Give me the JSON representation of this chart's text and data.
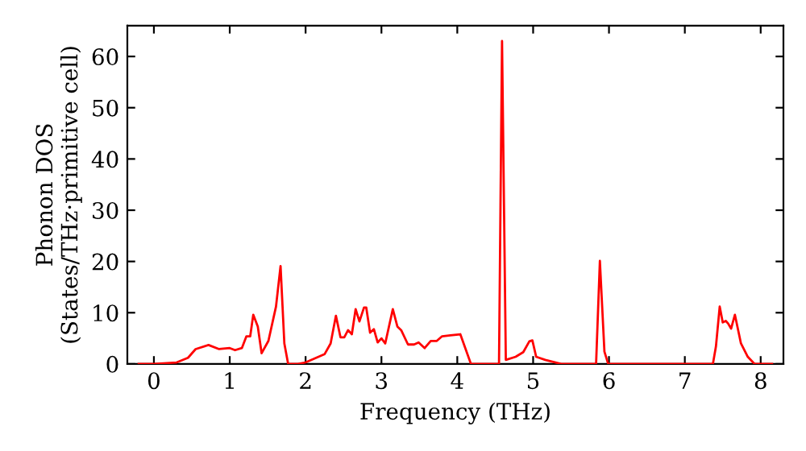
{
  "chart_data": {
    "type": "line",
    "xlabel": "Frequency (THz)",
    "ylabel": "Phonon DOS\n(States/THz·primitive cell)",
    "xlim": [
      -0.35,
      8.3
    ],
    "ylim": [
      0,
      66
    ],
    "xticks": [
      0,
      1,
      2,
      3,
      4,
      5,
      6,
      7,
      8
    ],
    "yticks": [
      0,
      10,
      20,
      30,
      40,
      50,
      60
    ],
    "grid": false,
    "marker": "none",
    "line_style": "solid",
    "series": [
      {
        "color": "#ff0000",
        "x": [
          -0.2,
          0.0,
          0.3,
          0.45,
          0.55,
          0.72,
          0.86,
          1.0,
          1.07,
          1.16,
          1.22,
          1.27,
          1.31,
          1.37,
          1.42,
          1.51,
          1.61,
          1.67,
          1.72,
          1.77,
          1.9,
          2.0,
          2.25,
          2.33,
          2.4,
          2.46,
          2.51,
          2.56,
          2.61,
          2.66,
          2.71,
          2.77,
          2.8,
          2.85,
          2.9,
          2.95,
          3.0,
          3.05,
          3.15,
          3.21,
          3.26,
          3.35,
          3.43,
          3.49,
          3.57,
          3.65,
          3.73,
          3.8,
          3.91,
          4.04,
          4.18,
          4.55,
          4.59,
          4.64,
          4.77,
          4.87,
          4.95,
          4.99,
          5.04,
          5.16,
          5.37,
          5.83,
          5.88,
          5.94,
          5.99,
          7.37,
          7.41,
          7.46,
          7.5,
          7.54,
          7.57,
          7.61,
          7.66,
          7.74,
          7.83,
          7.92,
          8.15
        ],
        "values": [
          0,
          0,
          0.3,
          1.2,
          2.9,
          3.7,
          2.9,
          3.1,
          2.7,
          3.1,
          5.4,
          5.4,
          9.6,
          7.3,
          2.1,
          4.5,
          11.2,
          19.1,
          4.0,
          0,
          0,
          0.3,
          1.9,
          4.0,
          9.4,
          5.2,
          5.2,
          6.6,
          5.8,
          10.7,
          8.3,
          11.0,
          11.0,
          6.1,
          6.8,
          4.2,
          5.0,
          4.0,
          10.7,
          7.3,
          6.6,
          3.8,
          3.8,
          4.2,
          3.1,
          4.5,
          4.5,
          5.4,
          5.6,
          5.8,
          0,
          0,
          63,
          0.8,
          1.4,
          2.3,
          4.4,
          4.6,
          1.4,
          0.8,
          0,
          0,
          20.1,
          2.4,
          0,
          0,
          3.4,
          11.2,
          8.1,
          8.4,
          7.9,
          6.9,
          9.6,
          4.0,
          1.4,
          0,
          0
        ]
      }
    ]
  }
}
